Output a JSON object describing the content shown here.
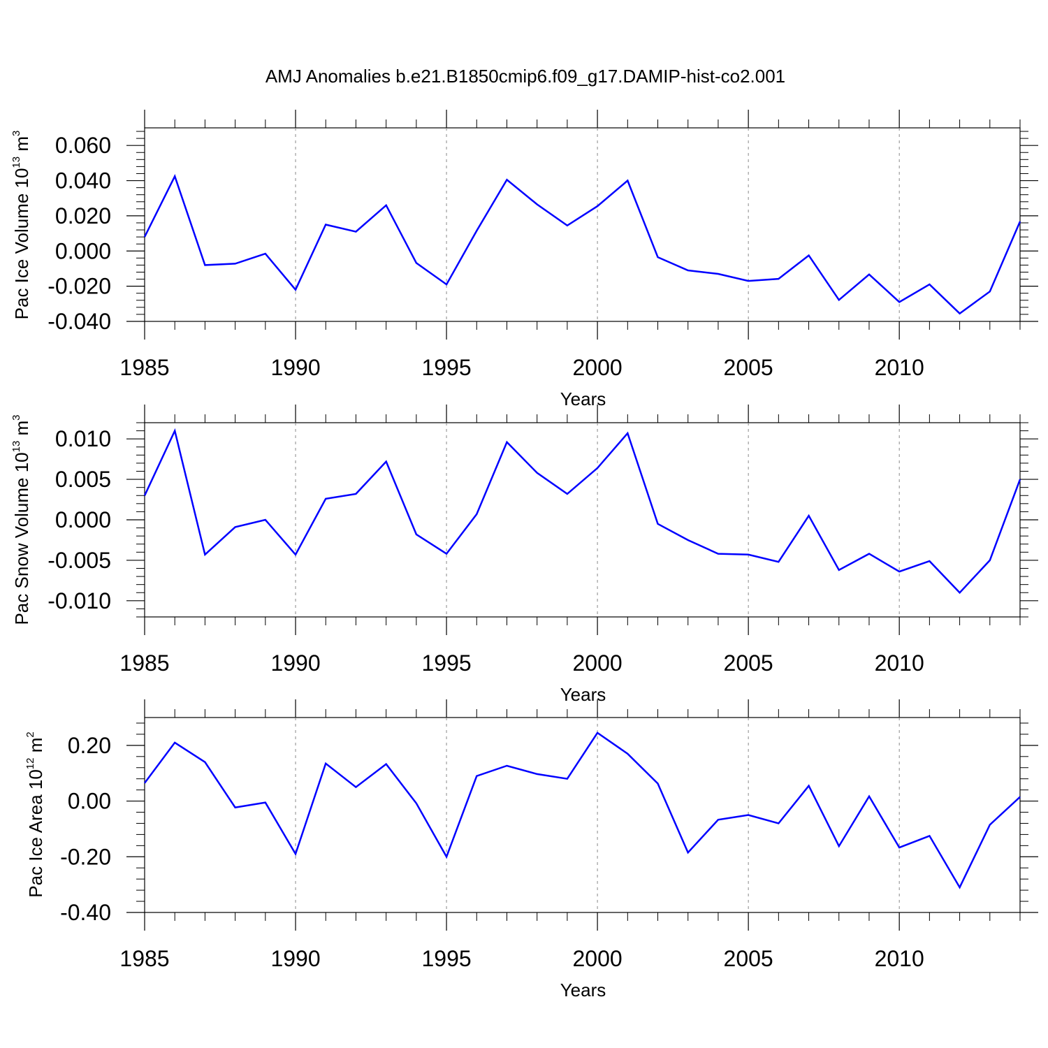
{
  "figure": {
    "title": "AMJ Anomalies b.e21.B1850cmip6.f09_g17.DAMIP-hist-co2.001"
  },
  "chart_data": [
    {
      "type": "line",
      "xlabel": "Years",
      "ylabel_main": "Pac Ice Volume 10",
      "ylabel_exp": "13",
      "ylabel_unit": " m",
      "ylabel_unit_exp": "3",
      "xlim": [
        1985,
        2014
      ],
      "ylim": [
        -0.04,
        0.07
      ],
      "xticks": [
        1985,
        1990,
        1995,
        2000,
        2005,
        2010
      ],
      "xtick_labels": [
        "1985",
        "1990",
        "1995",
        "2000",
        "2005",
        "2010"
      ],
      "yticks": [
        -0.04,
        -0.02,
        0.0,
        0.02,
        0.04,
        0.06
      ],
      "ytick_labels": [
        "-0.040",
        "-0.020",
        "0.000",
        "0.020",
        "0.040",
        "0.060"
      ],
      "grid": "vertical dashed at major x ticks",
      "color": "#0000ff",
      "x": [
        1985,
        1986,
        1987,
        1988,
        1989,
        1990,
        1991,
        1992,
        1993,
        1994,
        1995,
        1996,
        1997,
        1998,
        1999,
        2000,
        2001,
        2002,
        2003,
        2004,
        2005,
        2006,
        2007,
        2008,
        2009,
        2010,
        2011,
        2012,
        2013,
        2014
      ],
      "y": [
        0.008,
        0.0425,
        -0.008,
        -0.0072,
        -0.0015,
        -0.022,
        0.015,
        0.011,
        0.026,
        -0.0068,
        -0.019,
        0.0115,
        0.0405,
        0.0265,
        0.0145,
        0.0255,
        0.04,
        -0.0035,
        -0.011,
        -0.013,
        -0.017,
        -0.0158,
        -0.0025,
        -0.0278,
        -0.0133,
        -0.029,
        -0.019,
        -0.0355,
        -0.023,
        0.0168
      ]
    },
    {
      "type": "line",
      "xlabel": "Years",
      "ylabel_main": "Pac Snow Volume 10",
      "ylabel_exp": "13",
      "ylabel_unit": " m",
      "ylabel_unit_exp": "3",
      "xlim": [
        1985,
        2014
      ],
      "ylim": [
        -0.012,
        0.012
      ],
      "xticks": [
        1985,
        1990,
        1995,
        2000,
        2005,
        2010
      ],
      "xtick_labels": [
        "1985",
        "1990",
        "1995",
        "2000",
        "2005",
        "2010"
      ],
      "yticks": [
        -0.01,
        -0.005,
        0.0,
        0.005,
        0.01
      ],
      "ytick_labels": [
        "-0.010",
        "-0.005",
        "0.000",
        "0.005",
        "0.010"
      ],
      "grid": "vertical dashed at major x ticks",
      "color": "#0000ff",
      "x": [
        1985,
        1986,
        1987,
        1988,
        1989,
        1990,
        1991,
        1992,
        1993,
        1994,
        1995,
        1996,
        1997,
        1998,
        1999,
        2000,
        2001,
        2002,
        2003,
        2004,
        2005,
        2006,
        2007,
        2008,
        2009,
        2010,
        2011,
        2012,
        2013,
        2014
      ],
      "y": [
        0.003,
        0.011,
        -0.0043,
        -0.0009,
        0.0,
        -0.0043,
        0.0026,
        0.0032,
        0.0072,
        -0.0018,
        -0.0042,
        0.0007,
        0.0096,
        0.0058,
        0.0032,
        0.0064,
        0.0107,
        -0.0005,
        -0.0025,
        -0.0042,
        -0.0043,
        -0.0052,
        0.0005,
        -0.0062,
        -0.0042,
        -0.0064,
        -0.0051,
        -0.009,
        -0.005,
        0.005
      ]
    },
    {
      "type": "line",
      "xlabel": "Years",
      "ylabel_main": "Pac Ice Area 10",
      "ylabel_exp": "12",
      "ylabel_unit": " m",
      "ylabel_unit_exp": "2",
      "xlim": [
        1985,
        2014
      ],
      "ylim": [
        -0.4,
        0.3
      ],
      "xticks": [
        1985,
        1990,
        1995,
        2000,
        2005,
        2010
      ],
      "xtick_labels": [
        "1985",
        "1990",
        "1995",
        "2000",
        "2005",
        "2010"
      ],
      "yticks": [
        -0.4,
        -0.2,
        0.0,
        0.2
      ],
      "ytick_labels": [
        "-0.40",
        "-0.20",
        "0.00",
        "0.20"
      ],
      "grid": "vertical dashed at major x ticks",
      "color": "#0000ff",
      "x": [
        1985,
        1986,
        1987,
        1988,
        1989,
        1990,
        1991,
        1992,
        1993,
        1994,
        1995,
        1996,
        1997,
        1998,
        1999,
        2000,
        2001,
        2002,
        2003,
        2004,
        2005,
        2006,
        2007,
        2008,
        2009,
        2010,
        2011,
        2012,
        2013,
        2014
      ],
      "y": [
        0.065,
        0.21,
        0.14,
        -0.023,
        -0.005,
        -0.19,
        0.135,
        0.05,
        0.133,
        -0.008,
        -0.2,
        0.09,
        0.127,
        0.097,
        0.08,
        0.245,
        0.17,
        0.063,
        -0.185,
        -0.067,
        -0.05,
        -0.08,
        0.055,
        -0.162,
        0.017,
        -0.167,
        -0.125,
        -0.31,
        -0.085,
        0.015
      ]
    }
  ]
}
